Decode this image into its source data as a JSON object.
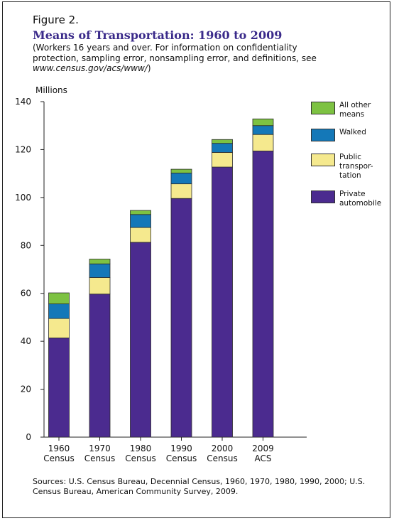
{
  "figure": {
    "label": "Figure 2.",
    "title": "Means of Transportation: 1960 to 2009",
    "subtitle_text": "(Workers 16 years and over. For information on confidentiality protection, sampling error, nonsampling error, and definitions, see ",
    "subtitle_url": "www.census.gov/acs/www/",
    "subtitle_end": ")",
    "source_text": "Sources: U.S. Census Bureau, Decennial Census, 1960, 1970, 1980, 1990, 2000; U.S. Census Bureau, American Community Survey, 2009."
  },
  "chart_data": {
    "type": "bar",
    "stacked": true,
    "units_label": "Millions",
    "categories": [
      "1960\nCensus",
      "1970\nCensus",
      "1980\nCensus",
      "1990\nCensus",
      "2000\nCensus",
      "2009\nACS"
    ],
    "ylim": [
      0,
      140
    ],
    "yticks": [
      0,
      20,
      40,
      60,
      80,
      100,
      120,
      140
    ],
    "grid": false,
    "legend_position": "right",
    "series": [
      {
        "name": "Private automobile",
        "color": "#4b2b8f",
        "values": [
          41.4,
          59.7,
          81.3,
          99.6,
          112.7,
          119.4
        ]
      },
      {
        "name": "Public transportation",
        "color": "#f5e98e",
        "values": [
          8.1,
          6.9,
          6.2,
          6.1,
          6.1,
          6.9
        ]
      },
      {
        "name": "Walked",
        "color": "#1478b8",
        "values": [
          6.1,
          5.7,
          5.4,
          4.5,
          3.8,
          3.7
        ]
      },
      {
        "name": "All other means",
        "color": "#7dc242",
        "values": [
          4.6,
          2.0,
          1.7,
          1.6,
          1.6,
          2.8
        ]
      }
    ]
  },
  "legend": [
    {
      "label": "All other\nmeans",
      "color": "#7dc242"
    },
    {
      "label": "Walked",
      "color": "#1478b8"
    },
    {
      "label": "Public\ntranspor-\ntation",
      "color": "#f5e98e"
    },
    {
      "label": "Private\nautomobile",
      "color": "#4b2b8f"
    }
  ]
}
